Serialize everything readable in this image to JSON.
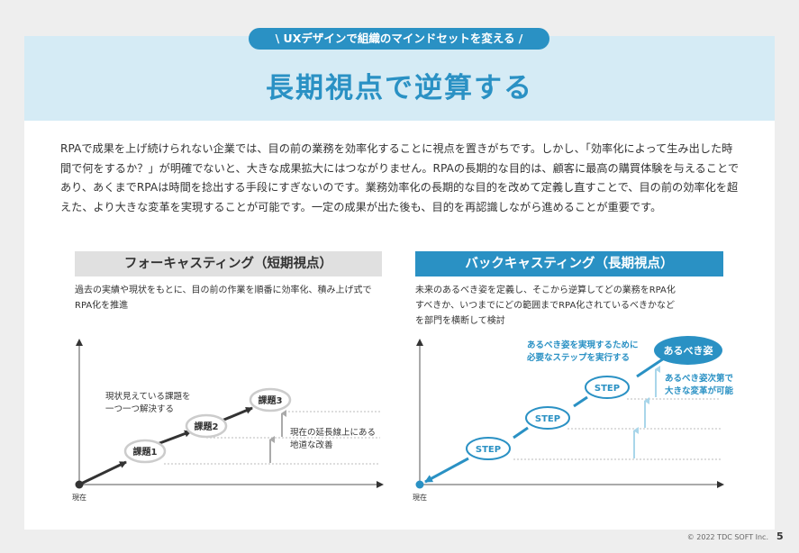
{
  "header": {
    "banner": "\\ UXデザインで組織のマインドセットを変える /",
    "title": "長期視点で逆算する"
  },
  "body": "RPAで成果を上げ続けられない企業では、目の前の業務を効率化することに視点を置きがちです。しかし、「効率化によって生み出した時間で何をするか？」が明確でないと、大きな成果拡大にはつながりません。RPAの長期的な目的は、顧客に最高の購買体験を与えることであり、あくまでRPAは時間を捻出する手段にすぎないのです。業務効率化の長期的な目的を改めて定義し直すことで、目の前の効率化を超えた、より大きな変革を実現することが可能です。一定の成果が出た後も、目的を再認識しながら進めることが重要です。",
  "forecasting": {
    "label": "フォーキャスティング（短期視点）",
    "description": "過去の実績や現状をもとに、目の前の作業を順番に効率化、積み上げ式でRPA化を推進",
    "steps": [
      "課題1",
      "課題2",
      "課題3"
    ],
    "annotation_top_line1": "現状見えている課題を",
    "annotation_top_line2": "一つ一つ解決する",
    "annotation_right_line1": "現在の延長線上にある",
    "annotation_right_line2": "地道な改善",
    "origin_label": "現在"
  },
  "backcasting": {
    "label": "バックキャスティング（長期視点）",
    "description_line1": "未来のあるべき姿を定義し、そこから逆算してどの業務をRPA化",
    "description_line2": "すべきか、いつまでにどの範囲までRPA化されているべきかなど",
    "description_line3": "を部門を横断して検討",
    "goal": "あるべき姿",
    "steps": [
      "STEP",
      "STEP",
      "STEP"
    ],
    "annotation_top_line1": "あるべき姿を実現するために",
    "annotation_top_line2": "必要なステップを実行する",
    "annotation_right_line1": "あるべき姿次第で",
    "annotation_right_line2": "大きな変革が可能",
    "origin_label": "現在"
  },
  "footer": {
    "copyright": "© 2022 TDC SOFT Inc.",
    "page": "5"
  },
  "colors": {
    "accent": "#2a91c4",
    "header_band": "#d5ebf5",
    "neutral_box": "#e0e0e0"
  }
}
